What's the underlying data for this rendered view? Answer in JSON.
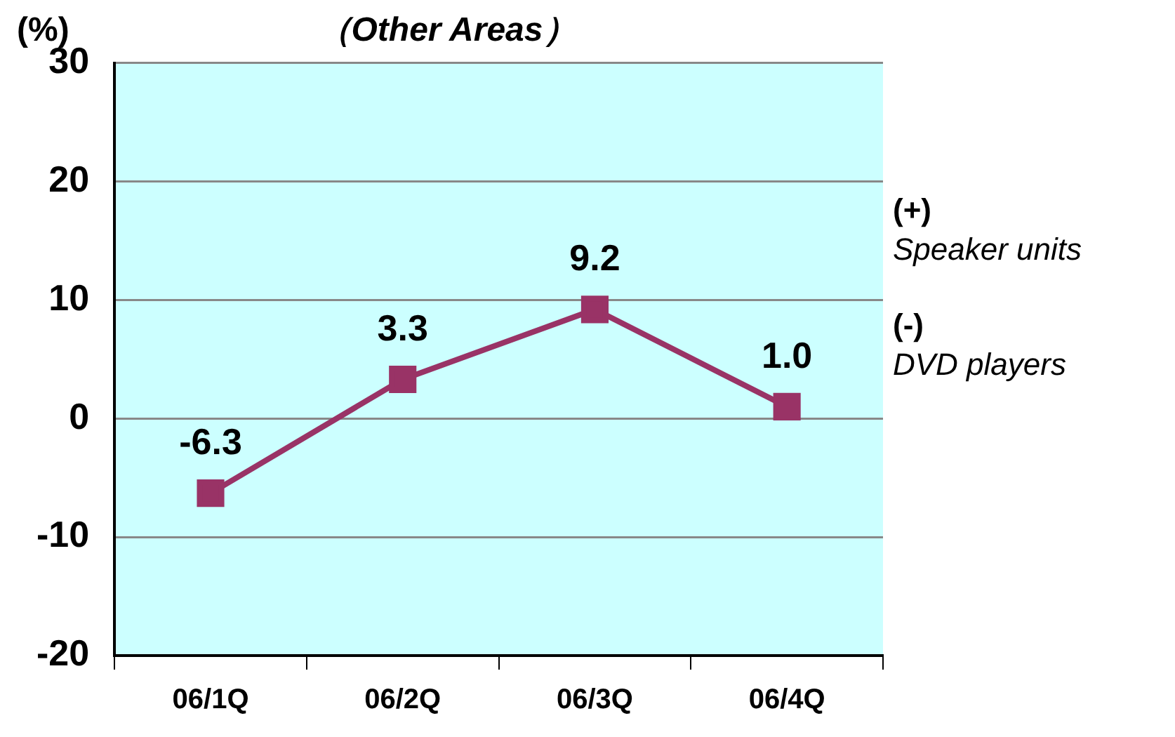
{
  "chart_data": {
    "type": "line",
    "title": "（Other Areas）",
    "ylabel": "(%)",
    "categories": [
      "06/1Q",
      "06/2Q",
      "06/3Q",
      "06/4Q"
    ],
    "series": [
      {
        "color": "#993366",
        "values": [
          -6.3,
          3.3,
          9.2,
          1.0
        ],
        "value_labels": [
          "-6.3",
          "3.3",
          "9.2",
          "1.0"
        ]
      }
    ],
    "ylim": [
      -20,
      30
    ],
    "yticks": [
      -20,
      -10,
      0,
      10,
      20,
      30
    ],
    "grid": "y",
    "legend": false,
    "marker": "square",
    "line_style": "solid",
    "annotations": [
      "(+)",
      "Speaker units",
      "(-)",
      "DVD players"
    ]
  }
}
